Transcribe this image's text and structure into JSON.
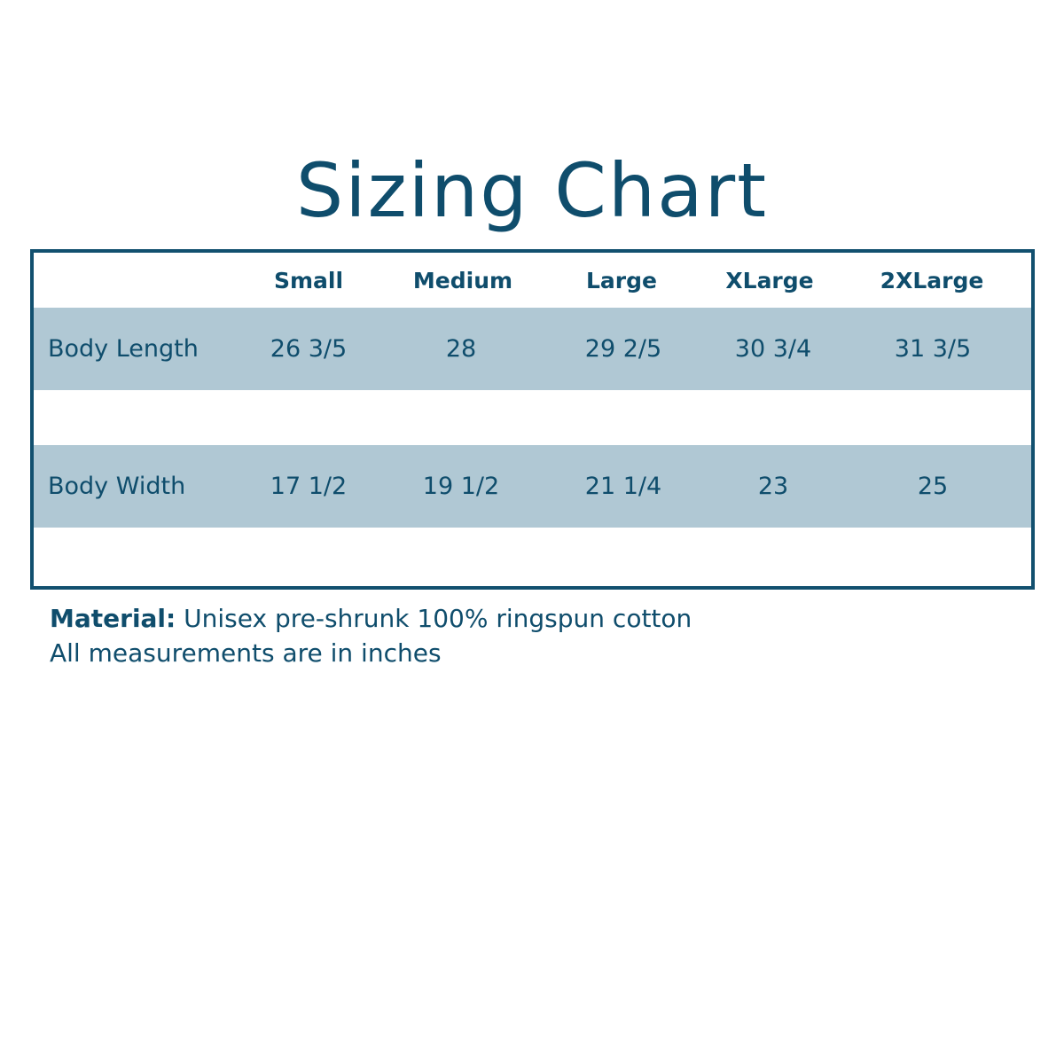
{
  "title": "Sizing Chart",
  "table": {
    "columns": [
      "Small",
      "Medium",
      "Large",
      "XLarge",
      "2XLarge"
    ],
    "rows": [
      {
        "label": "Body Length",
        "values": [
          "26 3/5",
          "28",
          "29 2/5",
          "30 3/4",
          "31 3/5"
        ]
      },
      {
        "label": "Body Width",
        "values": [
          "17 1/2",
          "19 1/2",
          "21 1/4",
          "23",
          "25"
        ]
      }
    ]
  },
  "footer": {
    "material_label": "Material:",
    "material_text": "Unisex pre-shrunk 100% ringspun cotton",
    "note": "All measurements are in inches"
  },
  "colors": {
    "primary": "#0f4d6c",
    "band": "#b0c8d4",
    "border": "#12506f"
  }
}
